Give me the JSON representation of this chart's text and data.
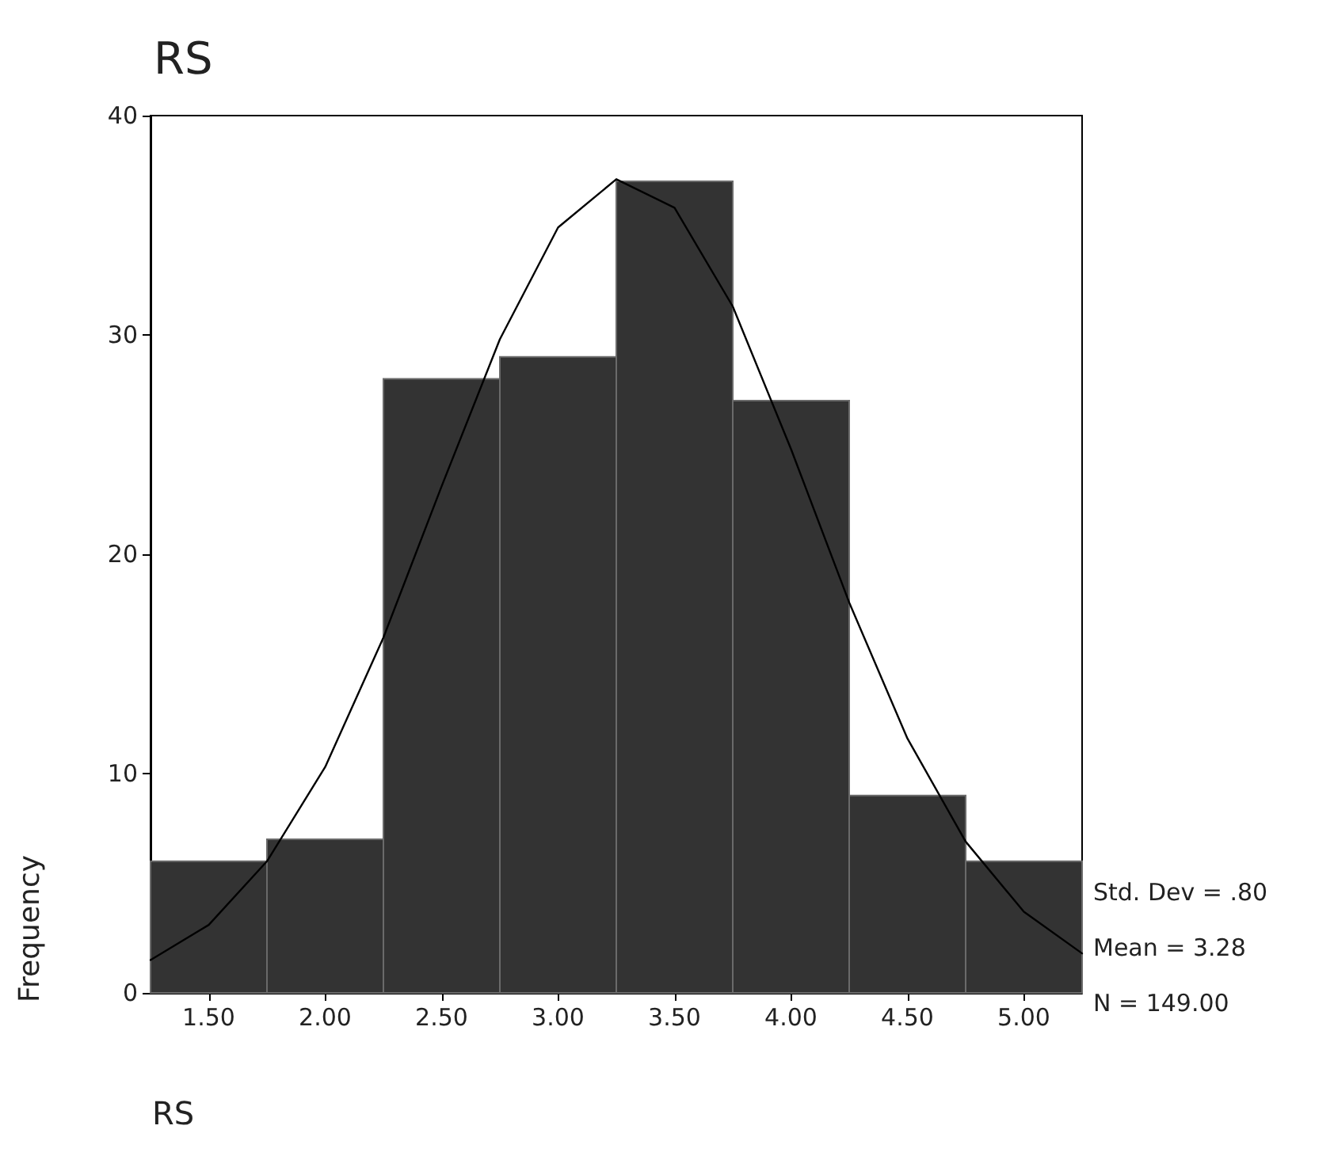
{
  "chart_data": {
    "type": "histogram",
    "title": "RS",
    "xlabel": "RS",
    "ylabel": "Frequency",
    "bins": [
      1.25,
      1.75,
      2.25,
      2.75,
      3.25,
      3.75,
      4.25,
      4.75,
      5.25
    ],
    "values": [
      6,
      7,
      28,
      29,
      37,
      27,
      9,
      6
    ],
    "color": "#333333",
    "series": [
      {
        "type": "line",
        "color": "#000000",
        "x": [
          1.25,
          1.5,
          1.75,
          2.0,
          2.25,
          2.5,
          2.75,
          3.0,
          3.25,
          3.5,
          3.75,
          4.0,
          4.25,
          4.5,
          4.75,
          5.0,
          5.25
        ],
        "values": [
          1.5,
          3.1,
          6.0,
          10.3,
          16.2,
          23.1,
          29.8,
          34.9,
          37.1,
          35.8,
          31.3,
          24.8,
          17.8,
          11.6,
          6.9,
          3.7,
          1.8
        ]
      }
    ],
    "xlim": [
      1.25,
      5.25
    ],
    "xticks": [
      {
        "value": 1.5,
        "label": "1.50"
      },
      {
        "value": 2.0,
        "label": "2.00"
      },
      {
        "value": 2.5,
        "label": "2.50"
      },
      {
        "value": 3.0,
        "label": "3.00"
      },
      {
        "value": 3.5,
        "label": "3.50"
      },
      {
        "value": 4.0,
        "label": "4.00"
      },
      {
        "value": 4.5,
        "label": "4.50"
      },
      {
        "value": 5.0,
        "label": "5.00"
      }
    ],
    "ylim": [
      0,
      40
    ],
    "yticks": [
      0,
      10,
      20,
      30,
      40
    ],
    "annotations": [
      "Std. Dev = .80",
      "Mean = 3.28",
      "N = 149.00"
    ],
    "grid": false,
    "marker": "none"
  }
}
